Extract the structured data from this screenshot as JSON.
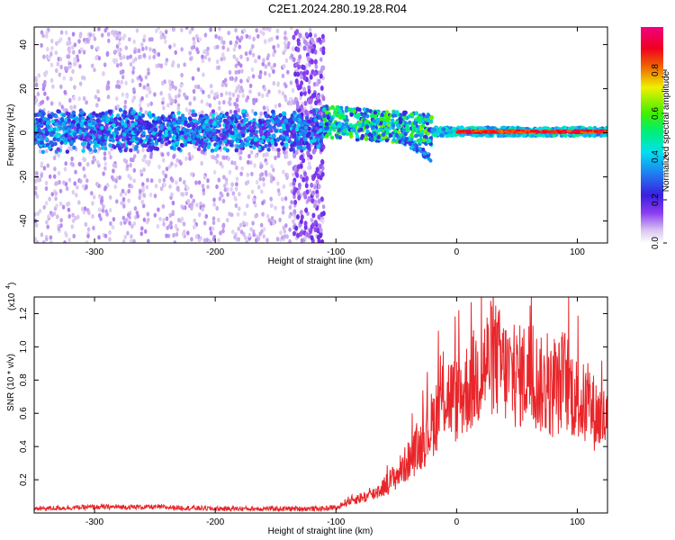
{
  "title": "C2E1.2024.280.19.28.R04",
  "chart_data": [
    {
      "type": "heatmap",
      "xlabel": "Height of straight line (km)",
      "ylabel": "Frequency (Hz)",
      "xlim": [
        -350,
        125
      ],
      "ylim": [
        -50,
        48
      ],
      "xticks": [
        -300,
        -200,
        -100,
        0,
        100
      ],
      "yticks": [
        -40,
        -20,
        0,
        20,
        40
      ],
      "grid": false,
      "colorbar": {
        "label": "Normalized spectral amplitude",
        "range": [
          0,
          1
        ],
        "ticks": [
          "0.0",
          "0.2",
          "0.4",
          "0.6",
          "0.8"
        ],
        "colors": [
          "#ffffff",
          "#d7c4f0",
          "#8a3cf0",
          "#3a1ee0",
          "#1f7cf0",
          "#00e0f0",
          "#00f070",
          "#40f000",
          "#f0f000",
          "#f06000",
          "#f00020",
          "#f00080"
        ]
      },
      "features": [
        {
          "x_range": [
            -350,
            -110
          ],
          "frequency_band": [
            -10,
            10
          ],
          "amplitude": "0.2-0.4",
          "note": ""
        },
        {
          "x_range": [
            -350,
            -110
          ],
          "frequency_band": [
            -50,
            48
          ],
          "amplitude": "0.0-0.1",
          "note": ""
        },
        {
          "x_range": [
            -110,
            -20
          ],
          "frequency_band": [
            -15,
            15
          ],
          "amplitude": "0.3-0.6",
          "note": ""
        },
        {
          "x_range": [
            0,
            125
          ],
          "frequency_band": [
            -2,
            3
          ],
          "amplitude": "0.8-1.0",
          "note": ""
        }
      ]
    },
    {
      "type": "line",
      "xlabel": "Height of straight line (km)",
      "ylabel": "SNR (10 * v/v)",
      "y_multiplier": "(x10",
      "y_exponent": "4",
      "xlim": [
        -350,
        125
      ],
      "ylim": [
        0,
        1.3
      ],
      "xticks": [
        -300,
        -200,
        -100,
        0,
        100
      ],
      "yticks": [
        "0.2",
        "0.4",
        "0.6",
        "0.8",
        "1.0",
        "1.2"
      ],
      "grid": false,
      "series": [
        {
          "color": "#e8262a",
          "x": [
            -350,
            -300,
            -250,
            -200,
            -150,
            -110,
            -100,
            -90,
            -80,
            -70,
            -60,
            -50,
            -40,
            -30,
            -20,
            -10,
            0,
            10,
            20,
            30,
            40,
            50,
            60,
            70,
            80,
            90,
            100,
            110,
            125
          ],
          "y": [
            0.02,
            0.03,
            0.03,
            0.02,
            0.02,
            0.02,
            0.03,
            0.08,
            0.1,
            0.12,
            0.18,
            0.25,
            0.35,
            0.45,
            0.6,
            0.8,
            0.75,
            0.85,
            0.95,
            1.05,
            0.95,
            0.9,
            0.95,
            0.85,
            0.8,
            0.9,
            0.75,
            0.7,
            0.6
          ]
        }
      ]
    }
  ]
}
